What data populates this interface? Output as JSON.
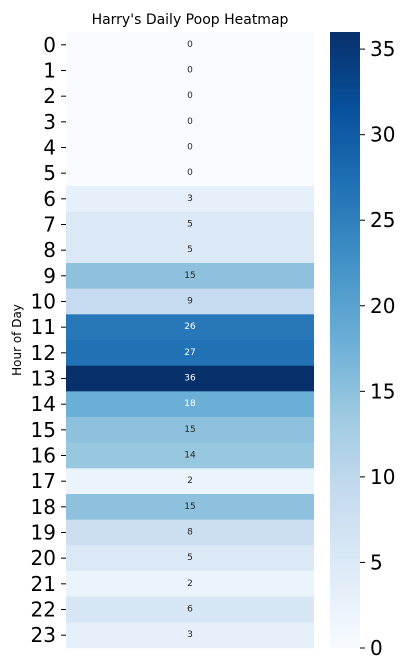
{
  "chart_data": {
    "type": "heatmap",
    "title": "Harry's Daily Poop Heatmap",
    "xlabel": "",
    "ylabel": "Hour of Day",
    "rows": [
      "0",
      "1",
      "2",
      "3",
      "4",
      "5",
      "6",
      "7",
      "8",
      "9",
      "10",
      "11",
      "12",
      "13",
      "14",
      "15",
      "16",
      "17",
      "18",
      "19",
      "20",
      "21",
      "22",
      "23"
    ],
    "values": [
      0,
      0,
      0,
      0,
      0,
      0,
      3,
      5,
      5,
      15,
      9,
      26,
      27,
      36,
      18,
      15,
      14,
      2,
      15,
      8,
      5,
      2,
      6,
      3
    ],
    "colormap": "Blues",
    "vmin": 0,
    "vmax": 36,
    "colorbar": {
      "ticks": [
        "0",
        "5",
        "10",
        "15",
        "20",
        "25",
        "30",
        "35"
      ],
      "tick_values": [
        0,
        5,
        10,
        15,
        20,
        25,
        30,
        35
      ]
    },
    "annotations": true,
    "grid": false,
    "colors": {
      "low": "#f7fbff",
      "high": "#08306b"
    }
  }
}
